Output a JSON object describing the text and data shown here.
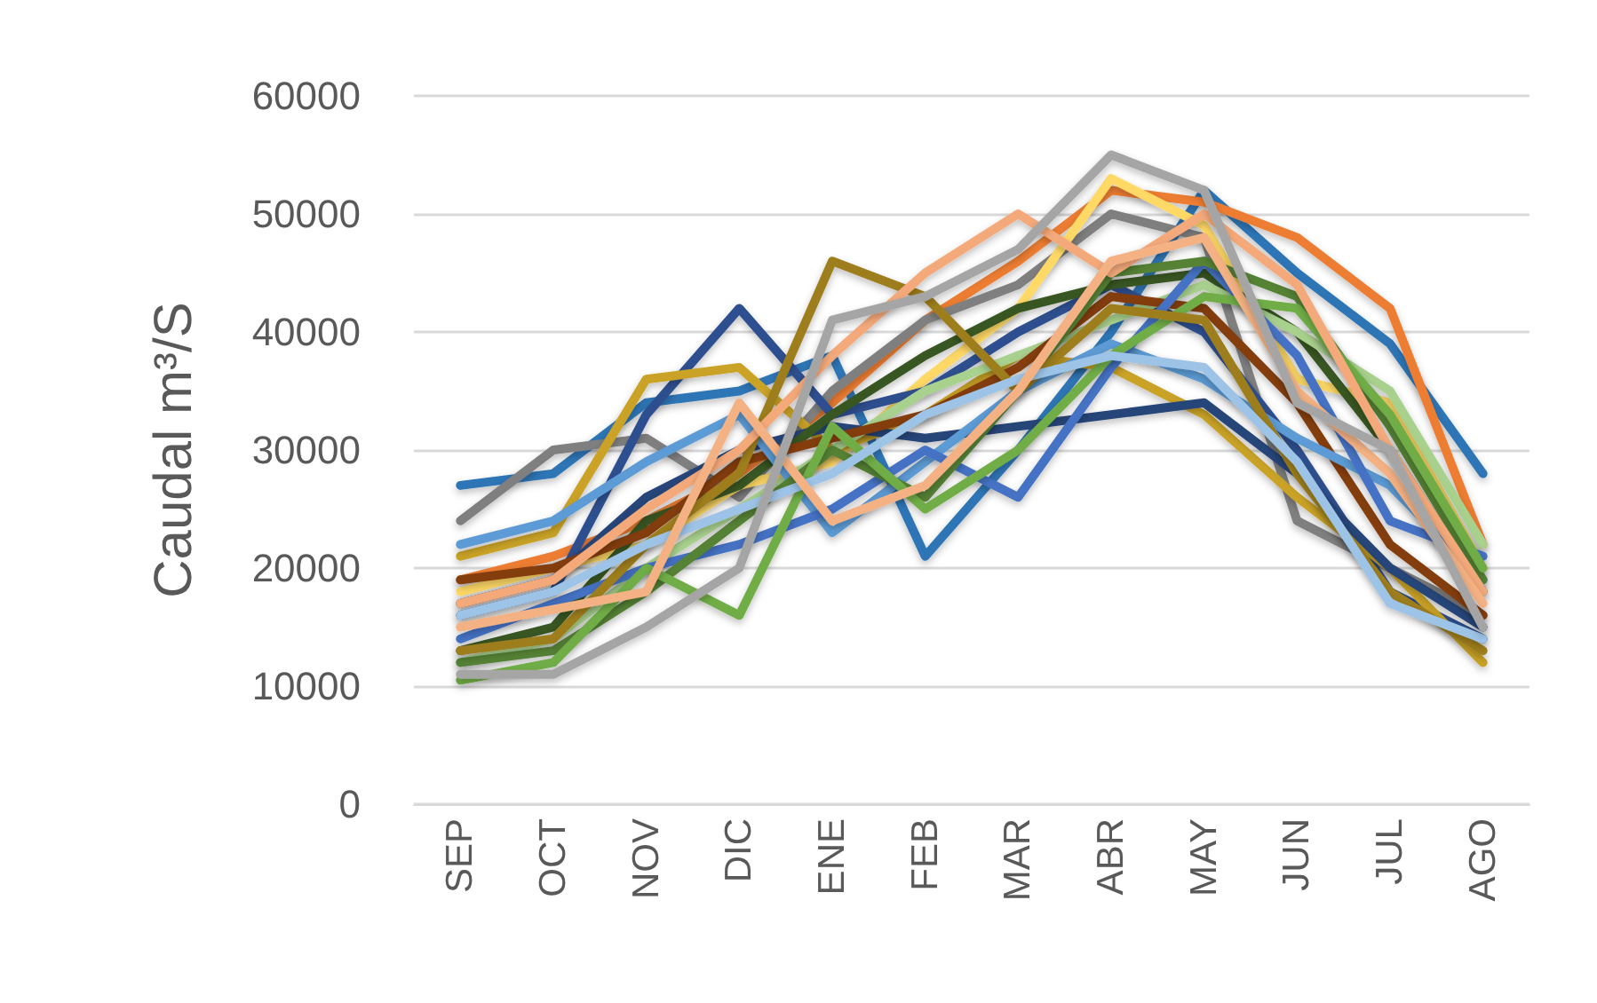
{
  "chart_data": {
    "type": "line",
    "ylabel": "Caudal m³/S",
    "categories": [
      "SEP",
      "OCT",
      "NOV",
      "DIC",
      "ENE",
      "FEB",
      "MAR",
      "ABR",
      "MAY",
      "JUN",
      "JUL",
      "AGO"
    ],
    "ylim": [
      0,
      60000
    ],
    "yticks": [
      0,
      10000,
      20000,
      30000,
      40000,
      50000,
      60000
    ],
    "grid": "y",
    "marker": "none",
    "line_style": "solid",
    "series": [
      {
        "color": "#2e75b6",
        "values": [
          27000,
          28000,
          34000,
          35000,
          38000,
          21000,
          30000,
          40000,
          52000,
          45000,
          39000,
          28000
        ]
      },
      {
        "color": "#ed7d31",
        "values": [
          19000,
          21000,
          24000,
          28000,
          34000,
          41000,
          46000,
          52000,
          51000,
          48000,
          42000,
          22000
        ]
      },
      {
        "color": "#7f7f7f",
        "values": [
          24000,
          30000,
          31000,
          26000,
          35000,
          41000,
          44000,
          50000,
          48000,
          24000,
          20000,
          16000
        ]
      },
      {
        "color": "#ffd966",
        "values": [
          18000,
          20000,
          22000,
          27000,
          29000,
          36000,
          42000,
          53000,
          49000,
          36000,
          34000,
          20000
        ]
      },
      {
        "color": "#2f4f8f",
        "values": [
          16000,
          18000,
          33000,
          42000,
          33000,
          35000,
          40000,
          44000,
          40000,
          30000,
          18000,
          14000
        ]
      },
      {
        "color": "#c9a227",
        "values": [
          21000,
          23000,
          36000,
          37000,
          30000,
          33000,
          38000,
          37000,
          33000,
          26000,
          20000,
          12000
        ]
      },
      {
        "color": "#264478",
        "values": [
          17000,
          19000,
          26000,
          30000,
          32000,
          31000,
          32000,
          33000,
          34000,
          28000,
          20000,
          15000
        ]
      },
      {
        "color": "#375623",
        "values": [
          13000,
          15000,
          24000,
          27000,
          33000,
          38000,
          42000,
          44000,
          45000,
          40000,
          30000,
          18000
        ]
      },
      {
        "color": "#a9d18e",
        "values": [
          12000,
          14000,
          20000,
          25000,
          30000,
          35000,
          38000,
          41000,
          44000,
          40000,
          35000,
          22000
        ]
      },
      {
        "color": "#843c0c",
        "values": [
          19000,
          20000,
          23000,
          29000,
          31000,
          33000,
          37000,
          43000,
          42000,
          34000,
          22000,
          16000
        ]
      },
      {
        "color": "#5b9bd5",
        "values": [
          22000,
          24000,
          29000,
          33000,
          23000,
          29000,
          35000,
          39000,
          36000,
          31000,
          27000,
          19000
        ]
      },
      {
        "color": "#4472c4",
        "values": [
          14000,
          17000,
          20000,
          22000,
          25000,
          30000,
          26000,
          37000,
          46000,
          38000,
          24000,
          21000
        ]
      },
      {
        "color": "#548235",
        "values": [
          12000,
          13000,
          18000,
          24000,
          30000,
          26000,
          35000,
          45000,
          46000,
          43000,
          32000,
          19000
        ]
      },
      {
        "color": "#70ad47",
        "values": [
          10500,
          12000,
          20000,
          16000,
          32000,
          25000,
          30000,
          38000,
          43000,
          42000,
          33000,
          20000
        ]
      },
      {
        "color": "#9e7e1f",
        "values": [
          13000,
          14000,
          22000,
          28000,
          46000,
          43000,
          35000,
          42000,
          41000,
          28000,
          18000,
          13000
        ]
      },
      {
        "color": "#f4a97a",
        "values": [
          17000,
          19000,
          25000,
          30000,
          38000,
          45000,
          50000,
          45000,
          50000,
          44000,
          30000,
          18000
        ]
      },
      {
        "color": "#9dc3e6",
        "values": [
          16000,
          18000,
          22000,
          25000,
          28000,
          33000,
          36000,
          38000,
          37000,
          29000,
          17000,
          14000
        ]
      },
      {
        "color": "#f4b183",
        "values": [
          15000,
          16500,
          18000,
          34000,
          24000,
          27000,
          35000,
          46000,
          48000,
          35000,
          28000,
          17000
        ]
      },
      {
        "color": "#a5a5a5",
        "values": [
          11000,
          11000,
          15000,
          20000,
          41000,
          43000,
          47000,
          55000,
          52000,
          34000,
          30000,
          15000
        ]
      }
    ]
  }
}
